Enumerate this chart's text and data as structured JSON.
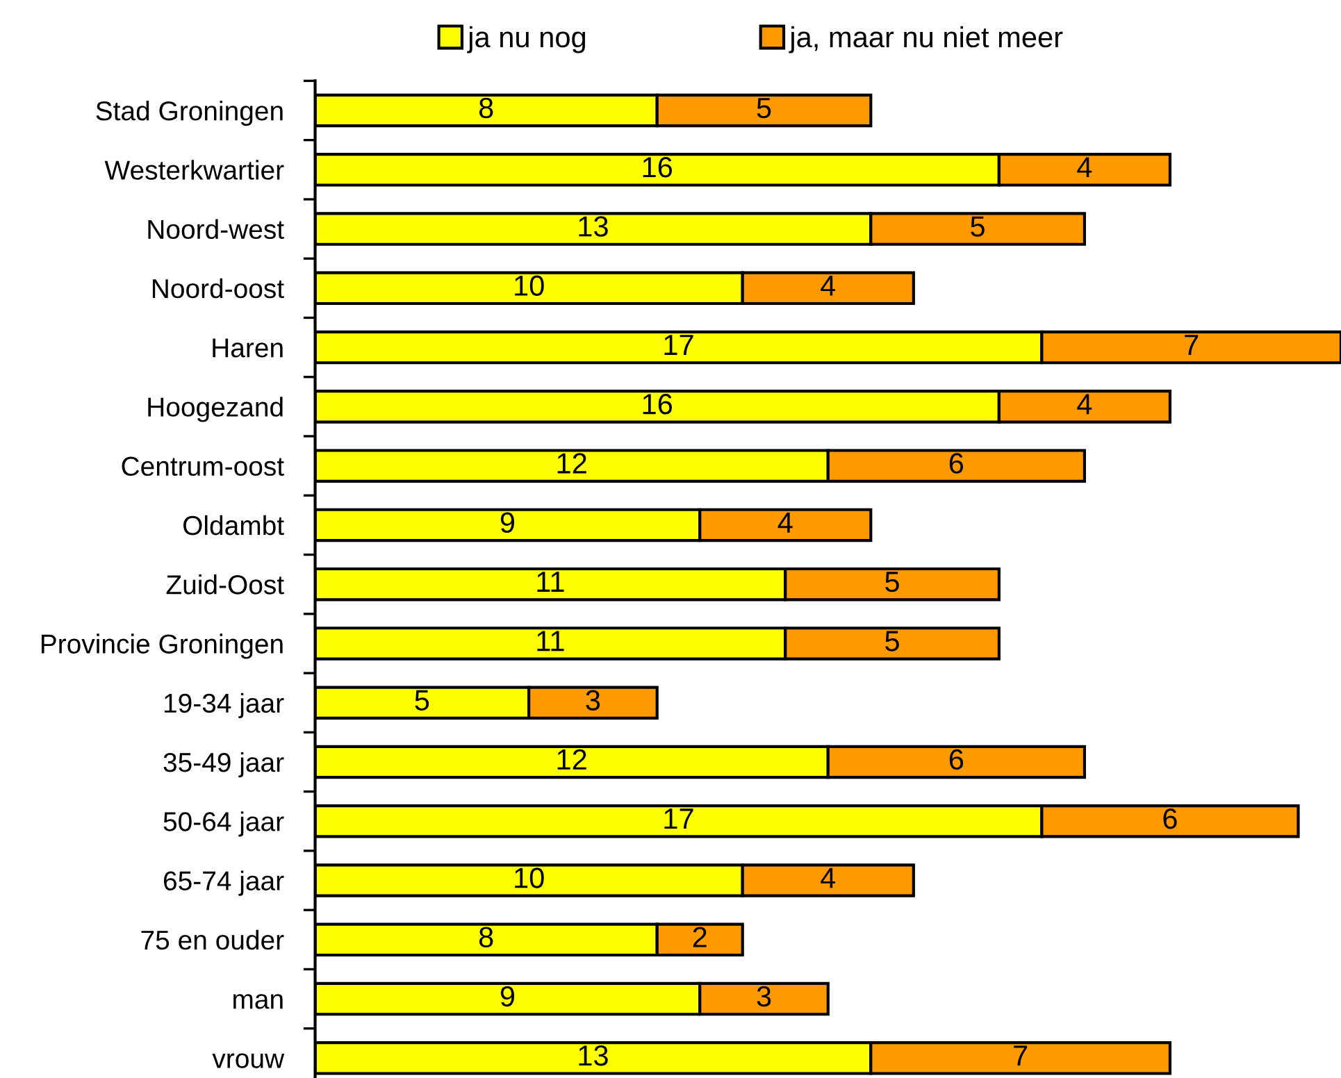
{
  "chart_data": {
    "type": "bar",
    "orientation": "horizontal",
    "stacked": true,
    "data_labels": true,
    "legend": "top",
    "grid": false,
    "tick_labels": "y",
    "xlim": [
      0,
      24
    ],
    "categories": [
      "Stad Groningen",
      "Westerkwartier",
      "Noord-west",
      "Noord-oost",
      "Haren",
      "Hoogezand",
      "Centrum-oost",
      "Oldambt",
      "Zuid-Oost",
      "Provincie Groningen",
      "19-34 jaar",
      "35-49 jaar",
      "50-64 jaar",
      "65-74 jaar",
      "75 en ouder",
      "man",
      "vrouw"
    ],
    "series": [
      {
        "name": "ja nu nog",
        "color": "#ffff00",
        "values": [
          8,
          16,
          13,
          10,
          17,
          16,
          12,
          9,
          11,
          11,
          5,
          12,
          17,
          10,
          8,
          9,
          13
        ]
      },
      {
        "name": "ja, maar nu niet meer",
        "color": "#ff9900",
        "values": [
          5,
          4,
          5,
          4,
          7,
          4,
          6,
          4,
          5,
          5,
          3,
          6,
          6,
          4,
          2,
          3,
          7
        ]
      }
    ]
  }
}
